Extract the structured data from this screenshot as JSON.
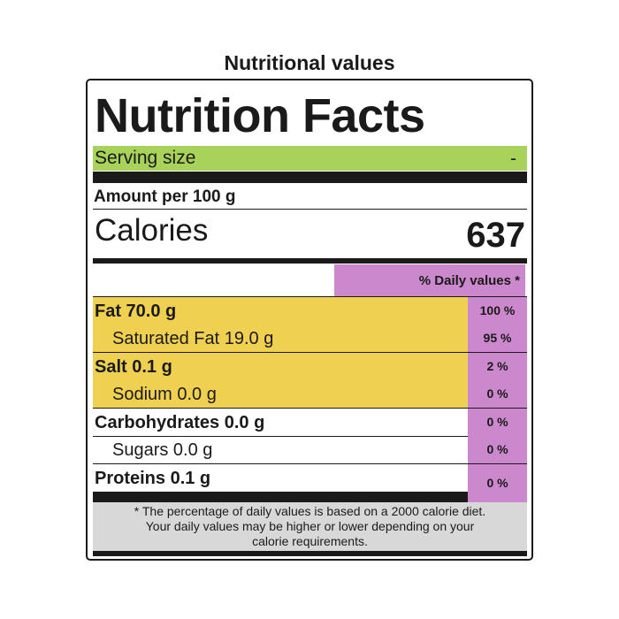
{
  "page": {
    "title": "Nutritional values"
  },
  "label": {
    "title": "Nutrition Facts",
    "serving_label": "Serving size",
    "serving_value": "-",
    "amount_per": "Amount per 100 g",
    "calories_label": "Calories",
    "calories_value": "637",
    "daily_values_header": "% Daily values *",
    "rows": [
      {
        "name": "Fat 70.0 g",
        "pct": "100 %",
        "style": "bold",
        "highlight": true
      },
      {
        "name": "Saturated Fat 19.0 g",
        "pct": "95 %",
        "style": "sub",
        "highlight": true
      },
      {
        "name": "Salt 0.1 g",
        "pct": "2 %",
        "style": "bold",
        "highlight": true
      },
      {
        "name": "Sodium 0.0 g",
        "pct": "0 %",
        "style": "sub",
        "highlight": true
      },
      {
        "name": "Carbohydrates 0.0 g",
        "pct": "0 %",
        "style": "bold",
        "highlight": false
      },
      {
        "name": "Sugars 0.0 g",
        "pct": "0 %",
        "style": "sub",
        "highlight": false
      },
      {
        "name": "Proteins 0.1 g",
        "pct": "0 %",
        "style": "bold",
        "highlight": false
      }
    ],
    "footnote": "* The percentage of daily values is based on a 2000 calorie diet. Your daily values may be higher or lower depending on your calorie requirements.",
    "colors": {
      "serving_bg": "#a8d25a",
      "highlight_bg": "#f0d050",
      "daily_value_bg": "#cc88cc",
      "footnote_bg": "#d8d8d8"
    }
  }
}
